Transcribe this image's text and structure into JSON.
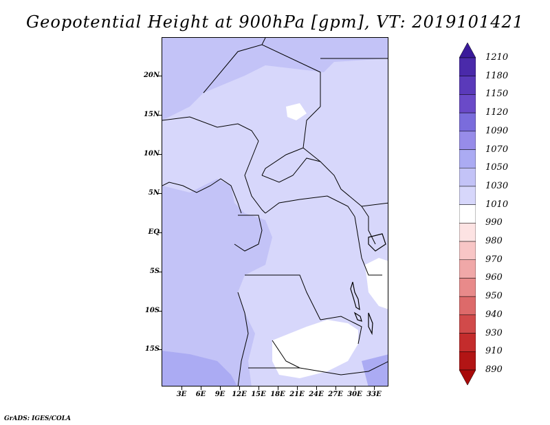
{
  "title": "Geopotential Height at 900hPa [gpm], VT: 2019101421",
  "footer": "GrADS: IGES/COLA",
  "map": {
    "lat_labels": [
      "20N",
      "15N",
      "10N",
      "5N",
      "EQ",
      "5S",
      "10S",
      "15S"
    ],
    "lon_labels": [
      "3E",
      "6E",
      "9E",
      "12E",
      "15E",
      "18E",
      "21E",
      "24E",
      "27E",
      "30E",
      "33E"
    ],
    "lat_range": [
      -20,
      25
    ],
    "lon_range": [
      0,
      35
    ],
    "fill_colors": {
      "1010": "#ffffff",
      "1030": "#d7d7fb",
      "1050": "#c3c3f7",
      "1070": "#ababf3"
    }
  },
  "colorbar": {
    "labels": [
      "1210",
      "1180",
      "1150",
      "1120",
      "1090",
      "1070",
      "1050",
      "1030",
      "1010",
      "990",
      "980",
      "970",
      "960",
      "950",
      "940",
      "930",
      "910",
      "890"
    ],
    "colors": [
      "#3a1a9a",
      "#4a2aaa",
      "#5a3aba",
      "#6a4ac8",
      "#7a6cdc",
      "#978ce9",
      "#ababf3",
      "#c3c3f7",
      "#d7d7fb",
      "#ffffff",
      "#fde3e3",
      "#f8c6c6",
      "#f0a8a8",
      "#e88a8a",
      "#dd6a6a",
      "#d14a4a",
      "#c42c2c",
      "#b21515",
      "#a80a0a"
    ]
  }
}
